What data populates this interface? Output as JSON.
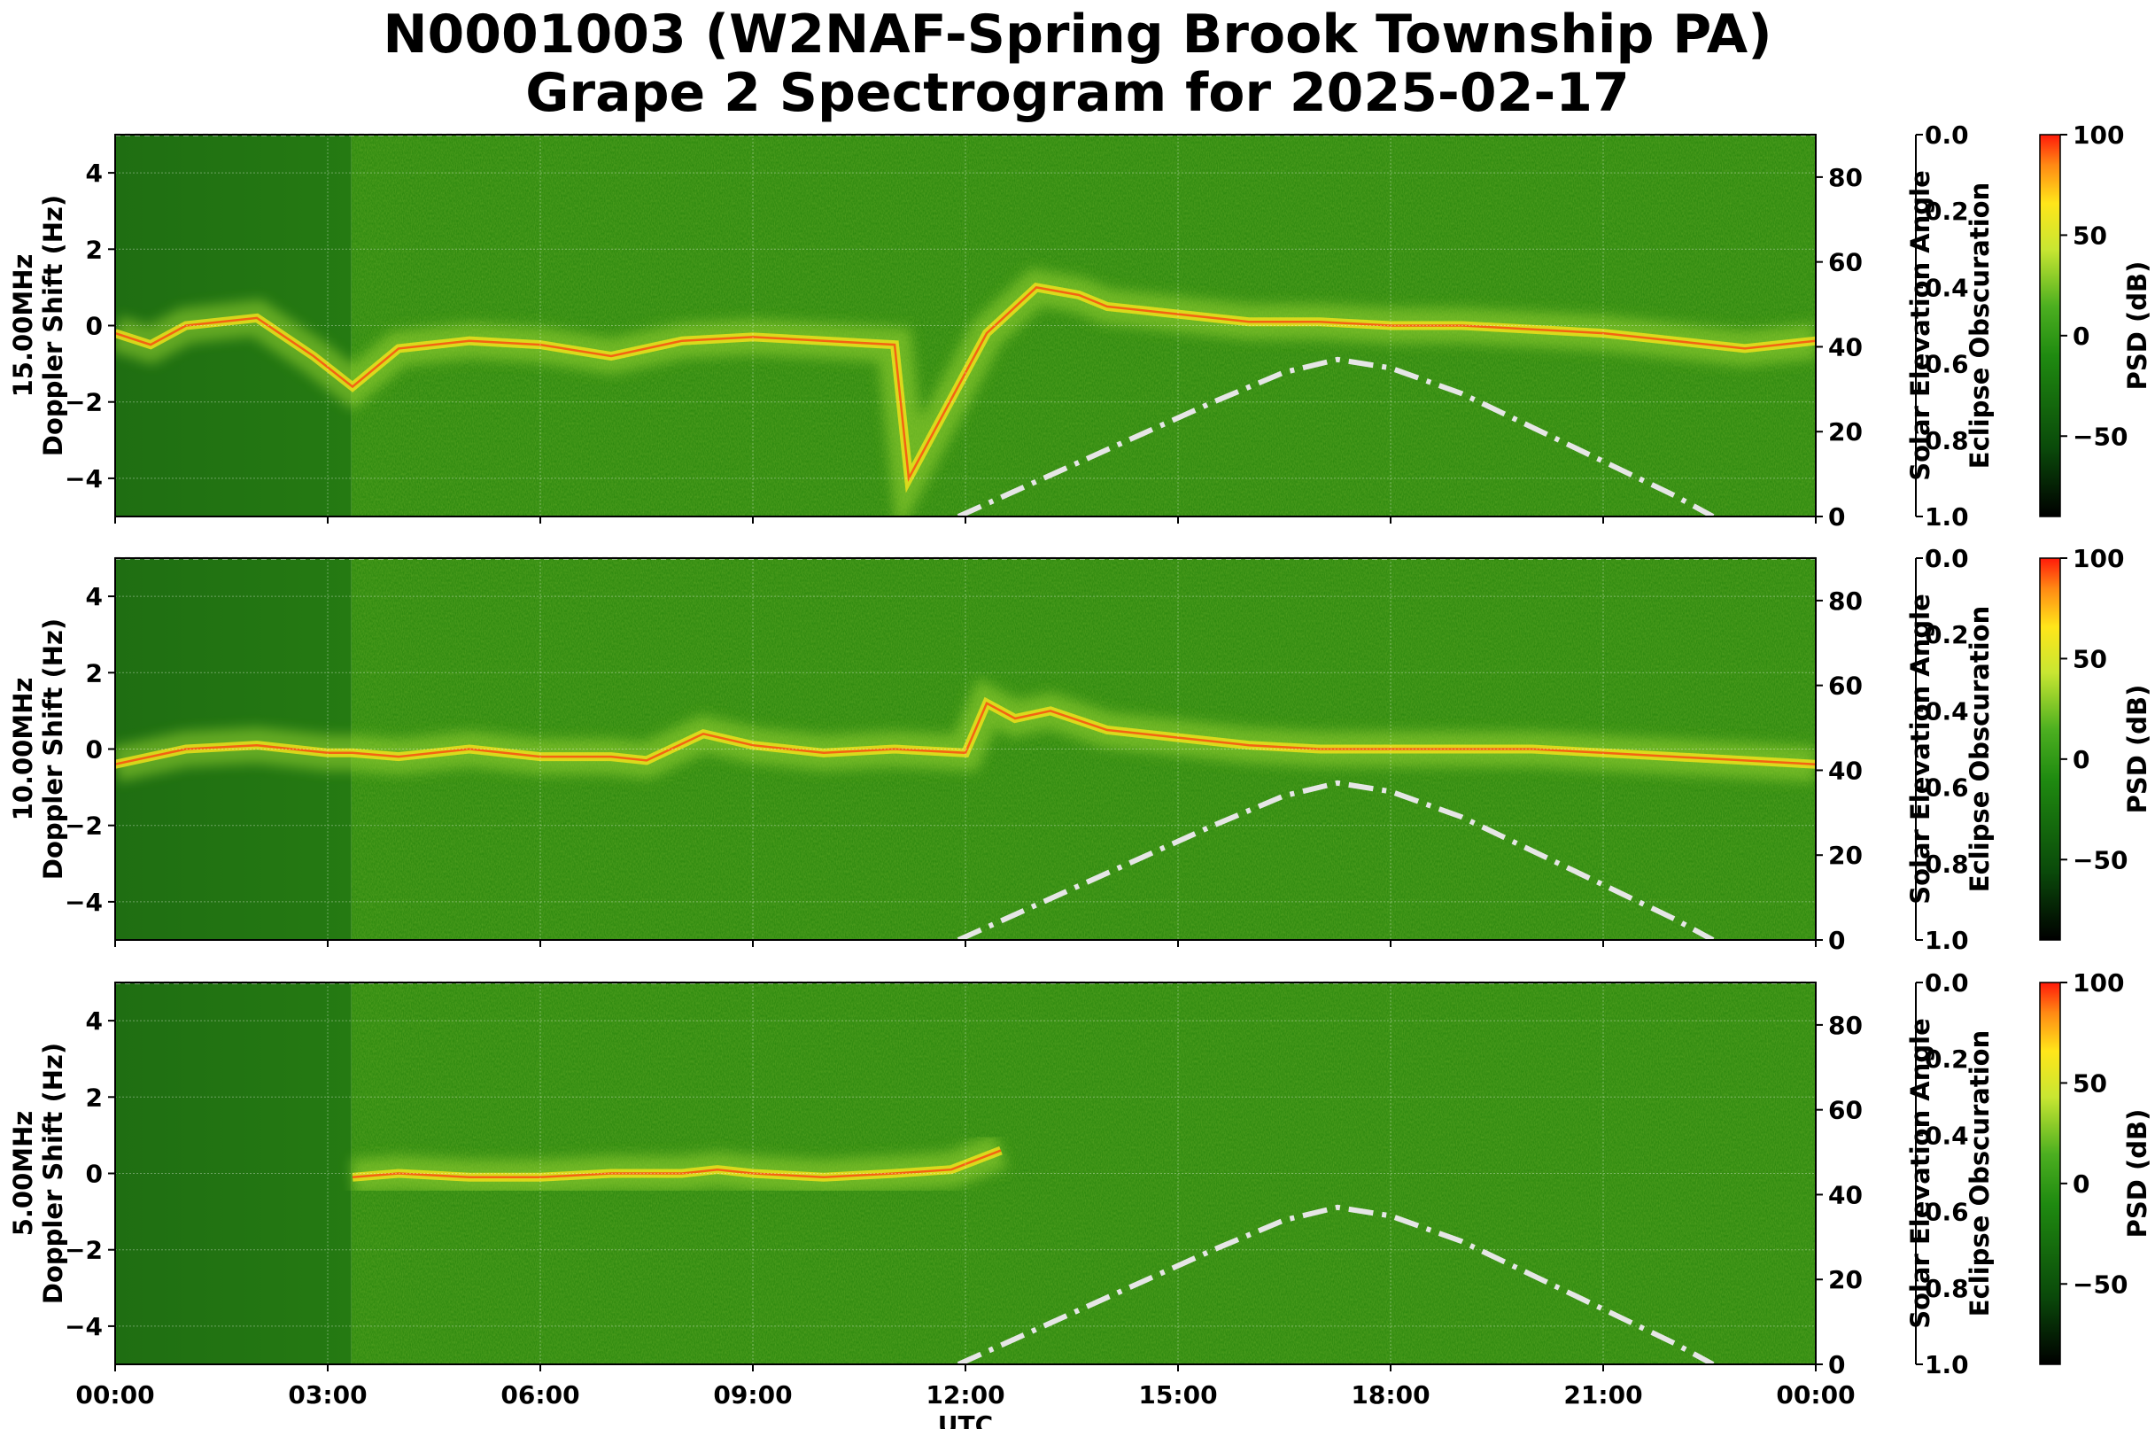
{
  "title": {
    "line1": "N0001003 (W2NAF-Spring Brook Township PA)",
    "line2": "Grape 2 Spectrogram for 2025-02-17"
  },
  "colors": {
    "spec_low": "#0a3a0a",
    "spec_bg": "#2f8a10",
    "spec_mid": "#9ad630",
    "spec_high": "#ffe61a",
    "spec_peak": "#ff3010",
    "solar_curve": "#e6e6e6"
  },
  "chart_data": [
    {
      "type": "heatmap",
      "name": "panel-15mhz",
      "band_label": "15.00MHz",
      "ylabel": "Doppler Shift (Hz)",
      "xlabel": "",
      "ylim": [
        -5,
        5
      ],
      "yticks": [
        -4,
        -2,
        0,
        2,
        4
      ],
      "ytick_labels": [
        "−4",
        "−2",
        "0",
        "2",
        "4"
      ],
      "xlim_hours": [
        0,
        24
      ],
      "xticks_hours": [
        0,
        3,
        6,
        9,
        12,
        15,
        18,
        21,
        24
      ],
      "xtick_labels": [],
      "grid": true,
      "data_start_utc": "03:20",
      "doppler_trace": [
        [
          0.0,
          -0.2
        ],
        [
          0.5,
          -0.5
        ],
        [
          1.0,
          0.0
        ],
        [
          2.0,
          0.2
        ],
        [
          2.8,
          -0.8
        ],
        [
          3.35,
          -1.6
        ],
        [
          4.0,
          -0.6
        ],
        [
          5.0,
          -0.4
        ],
        [
          6.0,
          -0.5
        ],
        [
          7.0,
          -0.8
        ],
        [
          8.0,
          -0.4
        ],
        [
          9.0,
          -0.3
        ],
        [
          10.0,
          -0.4
        ],
        [
          11.0,
          -0.5
        ],
        [
          11.2,
          -4.0
        ],
        [
          12.3,
          -0.2
        ],
        [
          13.0,
          1.0
        ],
        [
          13.6,
          0.8
        ],
        [
          14.0,
          0.5
        ],
        [
          15.0,
          0.3
        ],
        [
          16.0,
          0.1
        ],
        [
          17.0,
          0.1
        ],
        [
          18.0,
          0.0
        ],
        [
          19.0,
          0.0
        ],
        [
          20.0,
          -0.1
        ],
        [
          21.0,
          -0.2
        ],
        [
          22.0,
          -0.4
        ],
        [
          23.0,
          -0.6
        ],
        [
          24.0,
          -0.4
        ]
      ],
      "solar_elevation": {
        "ylabel": "Solar Elevation Angle",
        "ylim": [
          0,
          90
        ],
        "yticks": [
          0,
          20,
          40,
          60,
          80
        ],
        "curve_deg": [
          [
            11.9,
            0
          ],
          [
            12.5,
            4.5
          ],
          [
            13.5,
            12
          ],
          [
            14.5,
            19.5
          ],
          [
            15.5,
            27
          ],
          [
            16.5,
            34
          ],
          [
            17.25,
            37
          ],
          [
            18.0,
            35
          ],
          [
            19.0,
            29
          ],
          [
            20.0,
            21
          ],
          [
            21.0,
            13
          ],
          [
            22.0,
            5
          ],
          [
            22.55,
            0
          ]
        ],
        "style": "dash-dot"
      },
      "eclipse_obscuration": {
        "ylabel": "Eclipse Obscuration",
        "ylim": [
          1.0,
          0.0
        ],
        "yticks": [
          0.0,
          0.2,
          0.4,
          0.6,
          0.8,
          1.0
        ],
        "ytick_labels": [
          "0.0",
          "0.2",
          "0.4",
          "0.6",
          "0.8",
          "1.0"
        ],
        "values": [
          [
            0,
            0.0
          ],
          [
            24,
            0.0
          ]
        ]
      },
      "colorbar": {
        "label": "PSD (dB)",
        "ylim": [
          -90,
          100
        ],
        "ticks": [
          -50,
          0,
          50,
          100
        ],
        "tick_labels": [
          "−50",
          "0",
          "50",
          "100"
        ]
      }
    },
    {
      "type": "heatmap",
      "name": "panel-10mhz",
      "band_label": "10.00MHz",
      "ylabel": "Doppler Shift (Hz)",
      "xlabel": "",
      "ylim": [
        -5,
        5
      ],
      "yticks": [
        -4,
        -2,
        0,
        2,
        4
      ],
      "ytick_labels": [
        "−4",
        "−2",
        "0",
        "2",
        "4"
      ],
      "xlim_hours": [
        0,
        24
      ],
      "xticks_hours": [
        0,
        3,
        6,
        9,
        12,
        15,
        18,
        21,
        24
      ],
      "xtick_labels": [],
      "grid": true,
      "data_start_utc": "03:20",
      "doppler_trace": [
        [
          0.0,
          -0.4
        ],
        [
          1.0,
          0.0
        ],
        [
          2.0,
          0.1
        ],
        [
          3.0,
          -0.1
        ],
        [
          3.35,
          -0.1
        ],
        [
          4.0,
          -0.2
        ],
        [
          5.0,
          0.0
        ],
        [
          6.0,
          -0.2
        ],
        [
          7.0,
          -0.2
        ],
        [
          7.5,
          -0.3
        ],
        [
          8.3,
          0.4
        ],
        [
          9.0,
          0.1
        ],
        [
          10.0,
          -0.1
        ],
        [
          11.0,
          0.0
        ],
        [
          12.0,
          -0.1
        ],
        [
          12.3,
          1.2
        ],
        [
          12.7,
          0.8
        ],
        [
          13.2,
          1.0
        ],
        [
          14.0,
          0.5
        ],
        [
          15.0,
          0.3
        ],
        [
          16.0,
          0.1
        ],
        [
          17.0,
          0.0
        ],
        [
          18.0,
          0.0
        ],
        [
          19.0,
          0.0
        ],
        [
          20.0,
          0.0
        ],
        [
          21.0,
          -0.1
        ],
        [
          22.0,
          -0.2
        ],
        [
          23.0,
          -0.3
        ],
        [
          24.0,
          -0.4
        ]
      ],
      "solar_elevation": {
        "ylabel": "Solar Elevation Angle",
        "ylim": [
          0,
          90
        ],
        "yticks": [
          0,
          20,
          40,
          60,
          80
        ],
        "curve_deg": [
          [
            11.9,
            0
          ],
          [
            12.5,
            4.5
          ],
          [
            13.5,
            12
          ],
          [
            14.5,
            19.5
          ],
          [
            15.5,
            27
          ],
          [
            16.5,
            34
          ],
          [
            17.25,
            37
          ],
          [
            18.0,
            35
          ],
          [
            19.0,
            29
          ],
          [
            20.0,
            21
          ],
          [
            21.0,
            13
          ],
          [
            22.0,
            5
          ],
          [
            22.55,
            0
          ]
        ],
        "style": "dash-dot"
      },
      "eclipse_obscuration": {
        "ylabel": "Eclipse Obscuration",
        "ylim": [
          1.0,
          0.0
        ],
        "yticks": [
          0.0,
          0.2,
          0.4,
          0.6,
          0.8,
          1.0
        ],
        "ytick_labels": [
          "0.0",
          "0.2",
          "0.4",
          "0.6",
          "0.8",
          "1.0"
        ],
        "values": [
          [
            0,
            0.0
          ],
          [
            24,
            0.0
          ]
        ]
      },
      "colorbar": {
        "label": "PSD (dB)",
        "ylim": [
          -90,
          100
        ],
        "ticks": [
          -50,
          0,
          50,
          100
        ],
        "tick_labels": [
          "−50",
          "0",
          "50",
          "100"
        ]
      }
    },
    {
      "type": "heatmap",
      "name": "panel-5mhz",
      "band_label": "5.00MHz",
      "ylabel": "Doppler Shift (Hz)",
      "xlabel": "UTC",
      "ylim": [
        -5,
        5
      ],
      "yticks": [
        -4,
        -2,
        0,
        2,
        4
      ],
      "ytick_labels": [
        "−4",
        "−2",
        "0",
        "2",
        "4"
      ],
      "xlim_hours": [
        0,
        24
      ],
      "xticks_hours": [
        0,
        3,
        6,
        9,
        12,
        15,
        18,
        21,
        24
      ],
      "xtick_labels": [
        "00:00",
        "03:00",
        "06:00",
        "09:00",
        "12:00",
        "15:00",
        "18:00",
        "21:00",
        "00:00"
      ],
      "grid": true,
      "data_start_utc": "03:20",
      "doppler_trace": [
        [
          3.35,
          -0.1
        ],
        [
          4.0,
          0.0
        ],
        [
          5.0,
          -0.1
        ],
        [
          6.0,
          -0.1
        ],
        [
          7.0,
          0.0
        ],
        [
          8.0,
          0.0
        ],
        [
          8.5,
          0.1
        ],
        [
          9.0,
          0.0
        ],
        [
          10.0,
          -0.1
        ],
        [
          11.0,
          0.0
        ],
        [
          11.8,
          0.1
        ],
        [
          12.5,
          0.6
        ]
      ],
      "solar_elevation": {
        "ylabel": "Solar Elevation Angle",
        "ylim": [
          0,
          90
        ],
        "yticks": [
          0,
          20,
          40,
          60,
          80
        ],
        "curve_deg": [
          [
            11.9,
            0
          ],
          [
            12.5,
            4.5
          ],
          [
            13.5,
            12
          ],
          [
            14.5,
            19.5
          ],
          [
            15.5,
            27
          ],
          [
            16.5,
            34
          ],
          [
            17.25,
            37
          ],
          [
            18.0,
            35
          ],
          [
            19.0,
            29
          ],
          [
            20.0,
            21
          ],
          [
            21.0,
            13
          ],
          [
            22.0,
            5
          ],
          [
            22.55,
            0
          ]
        ],
        "style": "dash-dot"
      },
      "eclipse_obscuration": {
        "ylabel": "Eclipse Obscuration",
        "ylim": [
          1.0,
          0.0
        ],
        "yticks": [
          0.0,
          0.2,
          0.4,
          0.6,
          0.8,
          1.0
        ],
        "ytick_labels": [
          "0.0",
          "0.2",
          "0.4",
          "0.6",
          "0.8",
          "1.0"
        ],
        "values": [
          [
            0,
            0.0
          ],
          [
            24,
            0.0
          ]
        ]
      },
      "colorbar": {
        "label": "PSD (dB)",
        "ylim": [
          -90,
          100
        ],
        "ticks": [
          -50,
          0,
          50,
          100
        ],
        "tick_labels": [
          "−50",
          "0",
          "50",
          "100"
        ]
      }
    }
  ]
}
